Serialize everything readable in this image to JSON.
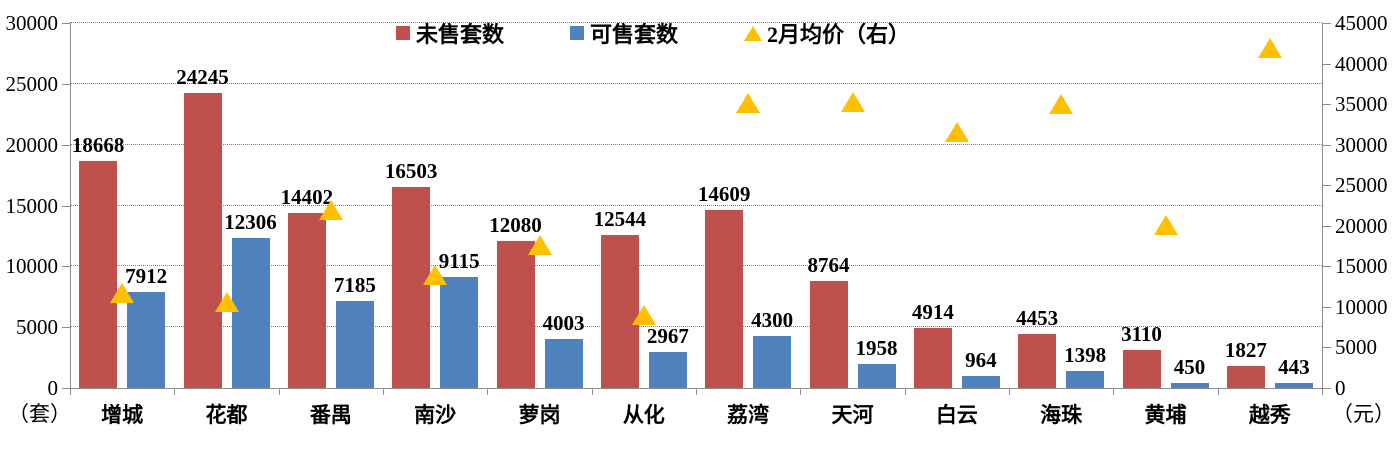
{
  "chart_data": {
    "type": "bar",
    "title": "",
    "legend_position": "top",
    "grid": "horizontal-dotted",
    "categories": [
      "增城",
      "花都",
      "番禺",
      "南沙",
      "萝岗",
      "从化",
      "荔湾",
      "天河",
      "白云",
      "海珠",
      "黄埔",
      "越秀"
    ],
    "series": [
      {
        "name": "未售套数",
        "type": "bar",
        "axis": "left",
        "color": "#C0504D",
        "values": [
          18668,
          24245,
          14402,
          16503,
          12080,
          12544,
          14609,
          8764,
          4914,
          4453,
          3110,
          1827
        ]
      },
      {
        "name": "可售套数",
        "type": "bar",
        "axis": "left",
        "color": "#4F81BD",
        "values": [
          7912,
          12306,
          7185,
          9115,
          4003,
          2967,
          4300,
          1958,
          964,
          1398,
          450,
          443
        ]
      },
      {
        "name": "2月均价（右）",
        "type": "scatter-triangle",
        "axis": "right",
        "color": "#FFC000",
        "estimated": true,
        "values": [
          11700,
          10600,
          22000,
          13900,
          17600,
          9000,
          35100,
          35200,
          31600,
          35000,
          20100,
          41900
        ]
      }
    ],
    "left_axis": {
      "unit": "（套）",
      "min": 0,
      "max": 30000,
      "step": 5000
    },
    "right_axis": {
      "unit": "（元）",
      "min": 0,
      "max": 45000,
      "step": 5000
    }
  }
}
